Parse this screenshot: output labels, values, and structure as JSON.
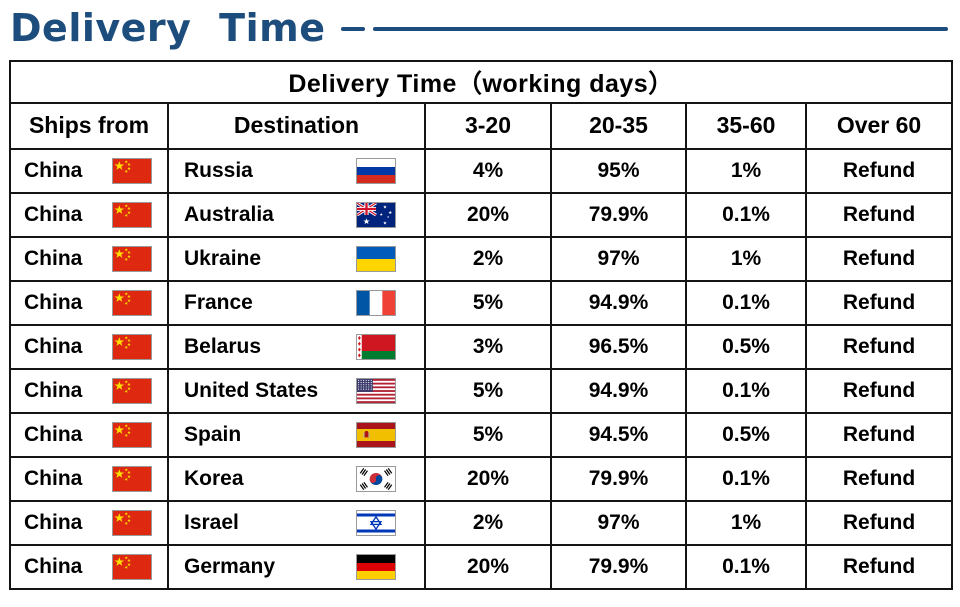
{
  "page": {
    "title": "Delivery Time"
  },
  "colors": {
    "accent": "#1d4d7c",
    "table_border": "#141414"
  },
  "chart_data": {
    "type": "table",
    "title": "Delivery Time（working days）",
    "columns": [
      "Ships from",
      "Destination",
      "3-20",
      "20-35",
      "35-60",
      "Over 60"
    ],
    "rows": [
      {
        "from": "China",
        "from_flag": "china",
        "dest": "Russia",
        "dest_flag": "russia",
        "d3_20": "4%",
        "d20_35": "95%",
        "d35_60": "1%",
        "over60": "Refund"
      },
      {
        "from": "China",
        "from_flag": "china",
        "dest": "Australia",
        "dest_flag": "australia",
        "d3_20": "20%",
        "d20_35": "79.9%",
        "d35_60": "0.1%",
        "over60": "Refund"
      },
      {
        "from": "China",
        "from_flag": "china",
        "dest": "Ukraine",
        "dest_flag": "ukraine",
        "d3_20": "2%",
        "d20_35": "97%",
        "d35_60": "1%",
        "over60": "Refund"
      },
      {
        "from": "China",
        "from_flag": "china",
        "dest": "France",
        "dest_flag": "france",
        "d3_20": "5%",
        "d20_35": "94.9%",
        "d35_60": "0.1%",
        "over60": "Refund"
      },
      {
        "from": "China",
        "from_flag": "china",
        "dest": "Belarus",
        "dest_flag": "belarus",
        "d3_20": "3%",
        "d20_35": "96.5%",
        "d35_60": "0.5%",
        "over60": "Refund"
      },
      {
        "from": "China",
        "from_flag": "china",
        "dest": "United States",
        "dest_flag": "united-states",
        "d3_20": "5%",
        "d20_35": "94.9%",
        "d35_60": "0.1%",
        "over60": "Refund"
      },
      {
        "from": "China",
        "from_flag": "china",
        "dest": "Spain",
        "dest_flag": "spain",
        "d3_20": "5%",
        "d20_35": "94.5%",
        "d35_60": "0.5%",
        "over60": "Refund"
      },
      {
        "from": "China",
        "from_flag": "china",
        "dest": "Korea",
        "dest_flag": "korea",
        "d3_20": "20%",
        "d20_35": "79.9%",
        "d35_60": "0.1%",
        "over60": "Refund"
      },
      {
        "from": "China",
        "from_flag": "china",
        "dest": "Israel",
        "dest_flag": "israel",
        "d3_20": "2%",
        "d20_35": "97%",
        "d35_60": "1%",
        "over60": "Refund"
      },
      {
        "from": "China",
        "from_flag": "china",
        "dest": "Germany",
        "dest_flag": "germany",
        "d3_20": "20%",
        "d20_35": "79.9%",
        "d35_60": "0.1%",
        "over60": "Refund"
      }
    ]
  }
}
